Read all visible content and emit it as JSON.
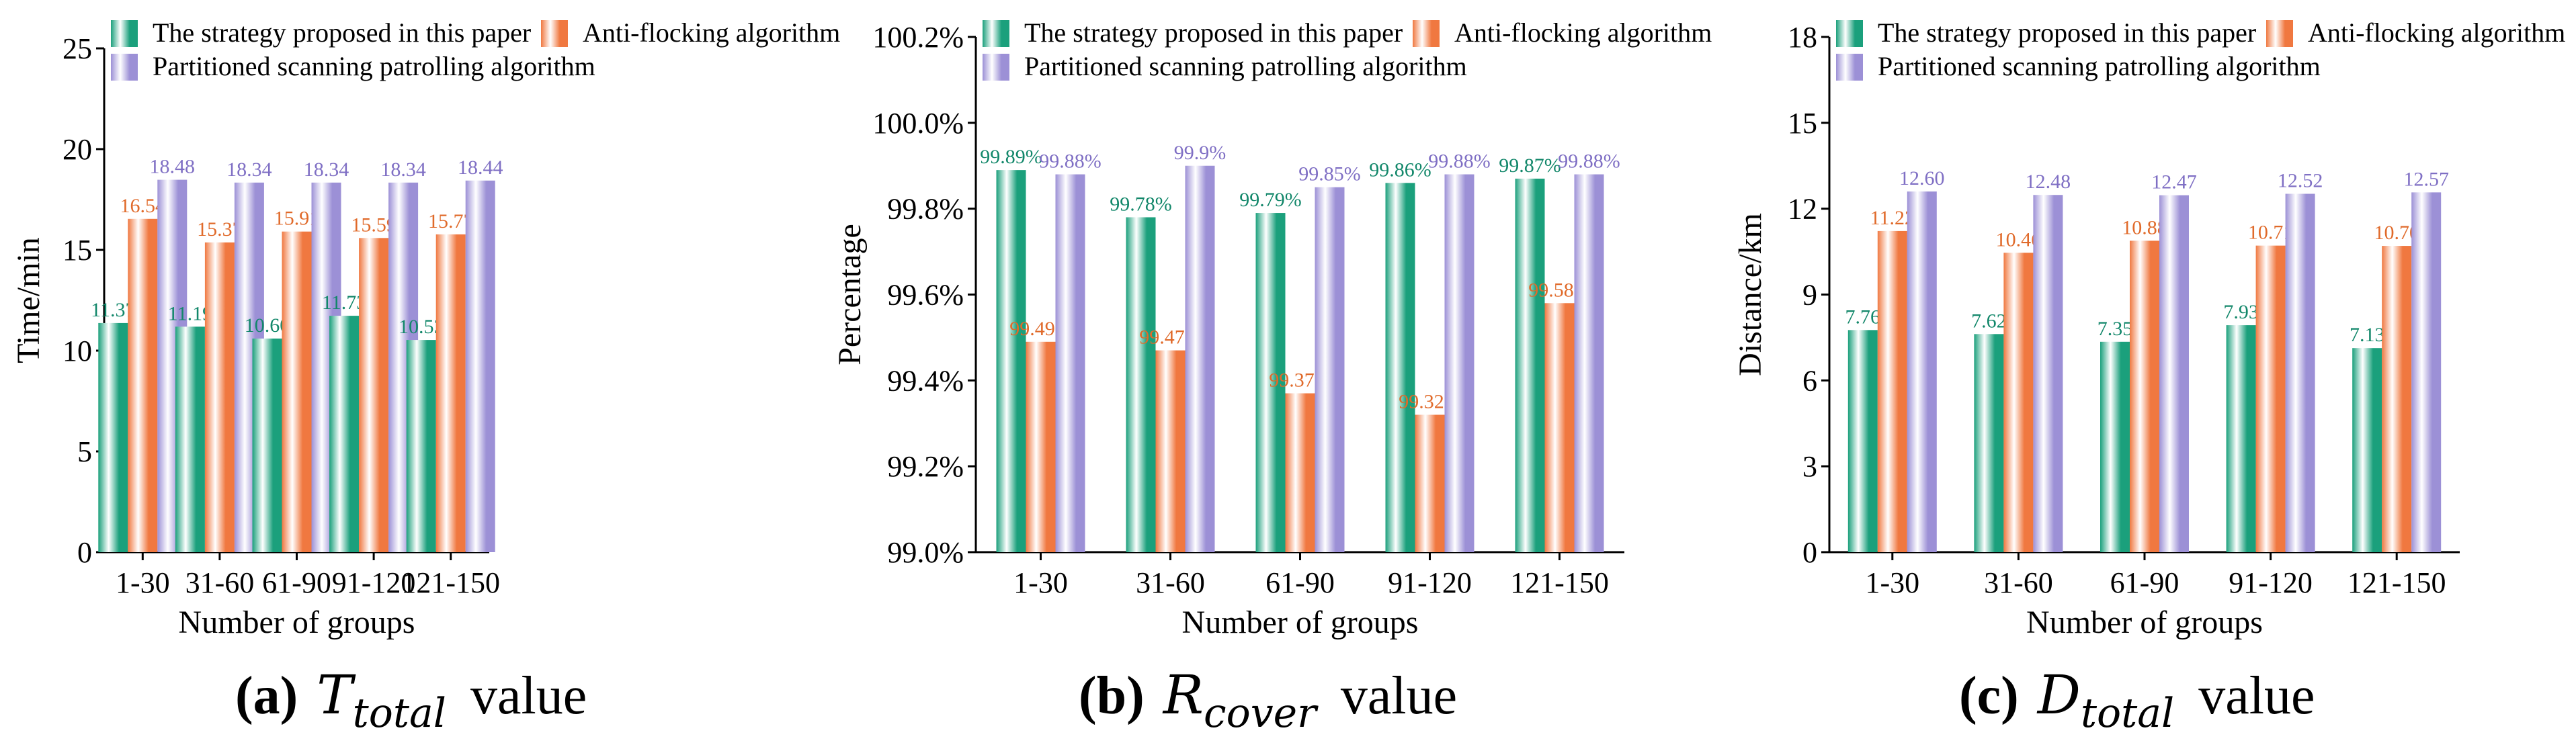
{
  "colors": {
    "series": [
      "#1ba07c",
      "#f07840",
      "#9c90d6"
    ],
    "label_colors": [
      "#12876a",
      "#e06a2a",
      "#7f6fc4"
    ],
    "bar_highlight": "#ffffff"
  },
  "legend": {
    "entries": [
      "The strategy proposed in this paper",
      "Anti-flocking algorithm",
      "Partitioned scanning patrolling algorithm"
    ]
  },
  "chart_data": [
    {
      "type": "bar",
      "categories": [
        "1-30",
        "31-60",
        "61-90",
        "91-120",
        "121-150"
      ],
      "series": [
        {
          "name": "The strategy proposed in this paper",
          "values": [
            11.37,
            11.19,
            10.6,
            11.73,
            10.53
          ],
          "labels": [
            "11.37",
            "11.19",
            "10.60",
            "11.73",
            "10.53"
          ]
        },
        {
          "name": "Anti-flocking algorithm",
          "values": [
            16.54,
            15.37,
            15.91,
            15.59,
            15.77
          ],
          "labels": [
            "16.54",
            "15.37",
            "15.91",
            "15.59",
            "15.77"
          ]
        },
        {
          "name": "Partitioned scanning patrolling algorithm",
          "values": [
            18.48,
            18.34,
            18.34,
            18.34,
            18.44
          ],
          "labels": [
            "18.48",
            "18.34",
            "18.34",
            "18.34",
            "18.44"
          ]
        }
      ],
      "xlabel": "Number of groups",
      "ylabel": "Time/min",
      "ylim": [
        0,
        25
      ],
      "yticks": [
        0,
        5,
        10,
        15,
        20,
        25
      ],
      "yticklabels": [
        "0",
        "5",
        "10",
        "15",
        "20",
        "25"
      ],
      "caption": {
        "letter": "(a)",
        "symbol": "T",
        "subscript": "total",
        "suffix": "value"
      }
    },
    {
      "type": "bar",
      "categories": [
        "1-30",
        "31-60",
        "61-90",
        "91-120",
        "121-150"
      ],
      "series": [
        {
          "name": "The strategy proposed in this paper",
          "values": [
            99.89,
            99.78,
            99.79,
            99.86,
            99.87
          ],
          "labels": [
            "99.89%",
            "99.78%",
            "99.79%",
            "99.86%",
            "99.87%"
          ]
        },
        {
          "name": "Anti-flocking algorithm",
          "values": [
            99.49,
            99.47,
            99.37,
            99.32,
            99.58
          ],
          "labels": [
            "99.49%",
            "99.47%",
            "99.37%",
            "99.32%",
            "99.58%"
          ]
        },
        {
          "name": "Partitioned scanning patrolling algorithm",
          "values": [
            99.88,
            99.9,
            99.85,
            99.88,
            99.88
          ],
          "labels": [
            "99.88%",
            "99.9%",
            "99.85%",
            "99.88%",
            "99.88%"
          ]
        }
      ],
      "xlabel": "Number of groups",
      "ylabel": "Percentage",
      "ylim": [
        99.0,
        100.2
      ],
      "yticks": [
        99.0,
        99.2,
        99.4,
        99.6,
        99.8,
        100.0,
        100.2
      ],
      "yticklabels": [
        "99.0%",
        "99.2%",
        "99.4%",
        "99.6%",
        "99.8%",
        "100.0%",
        "100.2%"
      ],
      "caption": {
        "letter": "(b)",
        "symbol": "R",
        "subscript": "cover",
        "suffix": "value"
      }
    },
    {
      "type": "bar",
      "categories": [
        "1-30",
        "31-60",
        "61-90",
        "91-120",
        "121-150"
      ],
      "series": [
        {
          "name": "The strategy proposed in this paper",
          "values": [
            7.76,
            7.62,
            7.35,
            7.93,
            7.13
          ],
          "labels": [
            "7.76",
            "7.62",
            "7.35",
            "7.93",
            "7.13"
          ]
        },
        {
          "name": "Anti-flocking algorithm",
          "values": [
            11.22,
            10.46,
            10.88,
            10.71,
            10.7
          ],
          "labels": [
            "11.22",
            "10.46",
            "10.88",
            "10.71",
            "10.70"
          ]
        },
        {
          "name": "Partitioned scanning patrolling algorithm",
          "values": [
            12.6,
            12.48,
            12.47,
            12.52,
            12.57
          ],
          "labels": [
            "12.60",
            "12.48",
            "12.47",
            "12.52",
            "12.57"
          ]
        }
      ],
      "xlabel": "Number of groups",
      "ylabel": "Distance/km",
      "ylim": [
        0,
        18
      ],
      "yticks": [
        0,
        3,
        6,
        9,
        12,
        15,
        18
      ],
      "yticklabels": [
        "0",
        "3",
        "6",
        "9",
        "12",
        "15",
        "18"
      ],
      "caption": {
        "letter": "(c)",
        "symbol": "D",
        "subscript": "total",
        "suffix": "value"
      }
    }
  ]
}
